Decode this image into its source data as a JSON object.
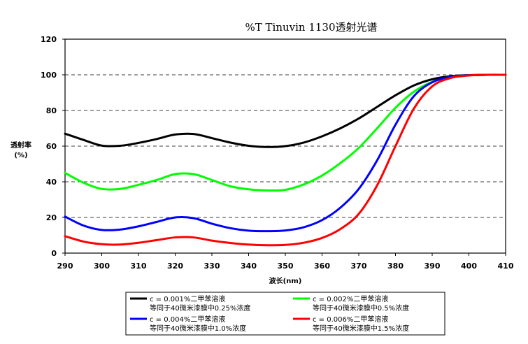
{
  "chart_data": {
    "type": "line",
    "title": "%T Tinuvin 1130透射光谱",
    "xlabel": "波长(nm)",
    "ylabel_line1": "透射率",
    "ylabel_line2": "(%)",
    "xlim": [
      290,
      410
    ],
    "ylim": [
      0,
      120
    ],
    "xticks": [
      "290",
      "300",
      "310",
      "320",
      "330",
      "340",
      "350",
      "360",
      "370",
      "380",
      "390",
      "400",
      "410"
    ],
    "yticks": [
      "0",
      "20",
      "40",
      "60",
      "80",
      "100",
      "120"
    ],
    "grid": "horizontal dashed",
    "legend_position": "bottom",
    "series": [
      {
        "name": "c = 0.001%二甲苯溶液",
        "name_line2": "等同于40微米漆膜中0.25%浓度",
        "color": "#000000",
        "points": [
          [
            290,
            67
          ],
          [
            295,
            63.5
          ],
          [
            300,
            60.3
          ],
          [
            305,
            60.2
          ],
          [
            310,
            61.8
          ],
          [
            315,
            64
          ],
          [
            320,
            66.5
          ],
          [
            325,
            66.8
          ],
          [
            330,
            64.5
          ],
          [
            335,
            62
          ],
          [
            340,
            60.2
          ],
          [
            345,
            59.5
          ],
          [
            350,
            60
          ],
          [
            355,
            62
          ],
          [
            360,
            65.5
          ],
          [
            365,
            70
          ],
          [
            370,
            75.5
          ],
          [
            375,
            82
          ],
          [
            380,
            88.5
          ],
          [
            385,
            94
          ],
          [
            390,
            97.5
          ],
          [
            395,
            99.2
          ],
          [
            400,
            99.8
          ],
          [
            405,
            100
          ],
          [
            410,
            100
          ]
        ]
      },
      {
        "name": "c = 0.002%二甲苯溶液",
        "name_line2": "等同于40微米漆膜中0.5%浓度",
        "color": "#00ff00",
        "points": [
          [
            290,
            45
          ],
          [
            295,
            39.5
          ],
          [
            300,
            36
          ],
          [
            305,
            36
          ],
          [
            310,
            38.3
          ],
          [
            315,
            41
          ],
          [
            320,
            44.3
          ],
          [
            325,
            44.3
          ],
          [
            330,
            41
          ],
          [
            335,
            37.5
          ],
          [
            340,
            35.8
          ],
          [
            345,
            35.2
          ],
          [
            350,
            35.5
          ],
          [
            355,
            38.5
          ],
          [
            360,
            43.5
          ],
          [
            365,
            50.5
          ],
          [
            370,
            59
          ],
          [
            375,
            70
          ],
          [
            380,
            81.5
          ],
          [
            385,
            90.5
          ],
          [
            390,
            96
          ],
          [
            395,
            98.8
          ],
          [
            400,
            99.7
          ],
          [
            405,
            100
          ],
          [
            410,
            100
          ]
        ]
      },
      {
        "name": "c = 0.004%二甲苯溶液",
        "name_line2": "等同于40微米漆膜中1.0%浓度",
        "color": "#0000ff",
        "points": [
          [
            290,
            20.5
          ],
          [
            295,
            15.5
          ],
          [
            300,
            13
          ],
          [
            305,
            13.2
          ],
          [
            310,
            15
          ],
          [
            315,
            17.5
          ],
          [
            320,
            20
          ],
          [
            325,
            19.6
          ],
          [
            330,
            16.5
          ],
          [
            335,
            14
          ],
          [
            340,
            12.6
          ],
          [
            345,
            12.3
          ],
          [
            350,
            12.7
          ],
          [
            355,
            14.5
          ],
          [
            360,
            18.5
          ],
          [
            365,
            25.5
          ],
          [
            370,
            36
          ],
          [
            375,
            52
          ],
          [
            380,
            72
          ],
          [
            385,
            88
          ],
          [
            390,
            95.8
          ],
          [
            395,
            98.8
          ],
          [
            400,
            99.7
          ],
          [
            405,
            100
          ],
          [
            410,
            100
          ]
        ]
      },
      {
        "name": "c = 0.006%二甲苯溶液",
        "name_line2": "等同于40微米漆膜中1.5%浓度",
        "color": "#ff0000",
        "points": [
          [
            290,
            9.5
          ],
          [
            295,
            6.5
          ],
          [
            300,
            5
          ],
          [
            305,
            4.8
          ],
          [
            310,
            5.8
          ],
          [
            315,
            7.3
          ],
          [
            320,
            8.8
          ],
          [
            325,
            8.8
          ],
          [
            330,
            7
          ],
          [
            335,
            5.7
          ],
          [
            340,
            4.8
          ],
          [
            345,
            4.4
          ],
          [
            350,
            4.6
          ],
          [
            355,
            5.8
          ],
          [
            360,
            8.5
          ],
          [
            365,
            13.5
          ],
          [
            370,
            22
          ],
          [
            375,
            38
          ],
          [
            380,
            60
          ],
          [
            385,
            81
          ],
          [
            390,
            93.5
          ],
          [
            395,
            98.2
          ],
          [
            400,
            99.6
          ],
          [
            405,
            100
          ],
          [
            410,
            100
          ]
        ]
      }
    ]
  }
}
